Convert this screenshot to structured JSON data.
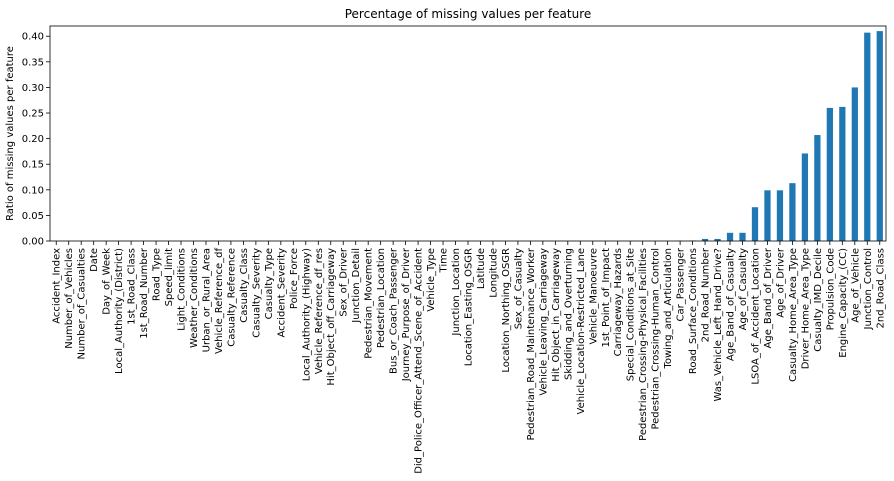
{
  "chart_data": {
    "type": "bar",
    "title": "Percentage of missing values per feature",
    "xlabel": "",
    "ylabel": "Ratio of missing values per feature",
    "ylim": [
      0,
      0.42
    ],
    "yticks": [
      0.0,
      0.05,
      0.1,
      0.15,
      0.2,
      0.25,
      0.3,
      0.35,
      0.4
    ],
    "ytick_labels": [
      "0.00",
      "0.05",
      "0.10",
      "0.15",
      "0.20",
      "0.25",
      "0.30",
      "0.35",
      "0.40"
    ],
    "grid": false,
    "bar_color": "#1f77b4",
    "categories": [
      "Accident_Index",
      "Number_of_Vehicles",
      "Number_of_Casualties",
      "Date",
      "Day_of_Week",
      "Local_Authority_(District)",
      "1st_Road_Class",
      "1st_Road_Number",
      "Road_Type",
      "Speed_limit",
      "Light_Conditions",
      "Weather_Conditions",
      "Urban_or_Rural_Area",
      "Vehicle_Reference_df",
      "Casualty_Reference",
      "Casualty_Class",
      "Casualty_Severity",
      "Casualty_Type",
      "Accident_Severity",
      "Police_Force",
      "Local_Authority_(Highway)",
      "Vehicle_Reference_df_res",
      "Hit_Object_off_Carriageway",
      "Sex_of_Driver",
      "Junction_Detail",
      "Pedestrian_Movement",
      "Pedestrian_Location",
      "Bus_or_Coach_Passenger",
      "Journey_Purpose_of_Driver",
      "Did_Police_Officer_Attend_Scene_of_Accident",
      "Vehicle_Type",
      "Time",
      "Junction_Location",
      "Location_Easting_OSGR",
      "Latitude",
      "Longitude",
      "Location_Northing_OSGR",
      "Sex_of_Casualty",
      "Pedestrian_Road_Maintenance_Worker",
      "Vehicle_Leaving_Carriageway",
      "Hit_Object_in_Carriageway",
      "Skidding_and_Overturning",
      "Vehicle_Location-Restricted_Lane",
      "Vehicle_Manoeuvre",
      "1st_Point_of_Impact",
      "Carriageway_Hazards",
      "Special_Conditions_at_Site",
      "Pedestrian_Crossing-Physical_Facilities",
      "Pedestrian_Crossing-Human_Control",
      "Towing_and_Articulation",
      "Car_Passenger",
      "Road_Surface_Conditions",
      "2nd_Road_Number",
      "Was_Vehicle_Left_Hand_Drive?",
      "Age_Band_of_Casualty",
      "Age_of_Casualty",
      "LSOA_of_Accident_Location",
      "Age_Band_of_Driver",
      "Age_of_Driver",
      "Casualty_Home_Area_Type",
      "Driver_Home_Area_Type",
      "Casualty_IMD_Decile",
      "Propulsion_Code",
      "Engine_Capacity_(CC)",
      "Age_of_Vehicle",
      "Junction_Control",
      "2nd_Road_Class"
    ],
    "values": [
      0,
      0,
      0,
      0,
      0,
      0,
      0,
      0,
      0,
      0,
      0,
      0,
      0,
      0,
      0,
      0,
      0,
      0,
      0,
      0,
      0,
      0,
      0,
      0,
      0,
      0,
      0,
      0,
      0,
      0,
      0,
      0,
      0,
      0,
      0,
      0,
      0,
      0,
      0,
      0,
      0,
      0,
      0,
      0,
      0,
      0,
      0,
      0,
      0,
      0,
      0.0003,
      0.001,
      0.004,
      0.004,
      0.016,
      0.016,
      0.066,
      0.099,
      0.099,
      0.113,
      0.171,
      0.207,
      0.26,
      0.262,
      0.3,
      0.407,
      0.41
    ]
  }
}
